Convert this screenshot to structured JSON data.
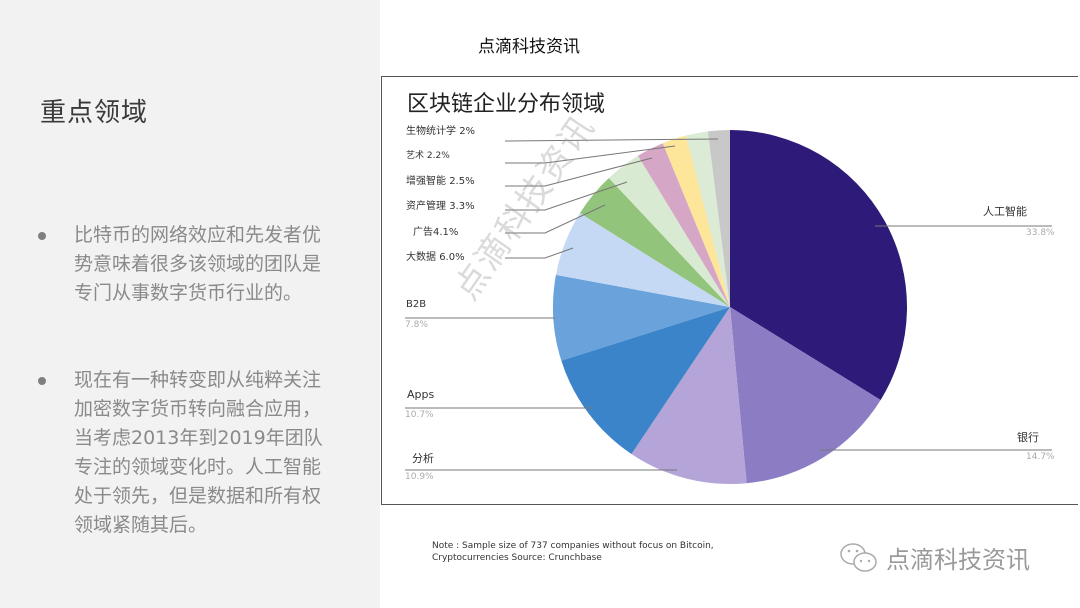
{
  "slide": {
    "title": "重点领域",
    "bullets": [
      "比特币的网络效应和先发者优势意味着很多该领域的团队是专门从事数字货币行业的。",
      "现在有一种转变即从纯粹关注加密数字货币转向融合应用，当考虑2013年到2019年团队专注的领域变化时。人工智能处于领先，但是数据和所有权领域紧随其后。"
    ]
  },
  "brand": {
    "top": "点滴科技资讯",
    "bottom": "点滴科技资讯",
    "watermark": "点滴科技资讯",
    "icon": "wechat-icon"
  },
  "note": {
    "line1": "Note : Sample size of 737 companies without focus on Bitcoin,",
    "line2": "Cryptocurrencies Source:  Crunchbase"
  },
  "chart_data": {
    "type": "pie",
    "title": "区块链企业分布领域",
    "categories": [
      "人工智能",
      "银行",
      "分析",
      "Apps",
      "B2B",
      "大数据",
      "广告",
      "资产管理",
      "增强智能",
      "艺术",
      "生物统计学"
    ],
    "values": [
      33.8,
      14.7,
      10.9,
      10.7,
      7.8,
      6.0,
      4.1,
      3.3,
      2.5,
      2.2,
      2.0
    ],
    "colors": [
      "#2e1a78",
      "#8c7cc4",
      "#b5a4d8",
      "#3c84c9",
      "#6aa3dc",
      "#c5d9f4",
      "#92c47c",
      "#d9ead2",
      "#d5a6c6",
      "#fde59a",
      "#dcebd5",
      "#c8c8c8"
    ],
    "labels": [
      {
        "name": "人工智能",
        "pct": "33.8%"
      },
      {
        "name": "银行",
        "pct": "14.7%"
      },
      {
        "name": "分析",
        "pct": "10.9%"
      },
      {
        "name": "Apps",
        "pct": "10.7%"
      },
      {
        "name": "B2B",
        "pct": "7.8%"
      },
      {
        "name": "大数据",
        "pct": "6.0%"
      },
      {
        "name": "广告",
        "pct": "4.1%"
      },
      {
        "name": "资产管理",
        "pct": "3.3%"
      },
      {
        "name": "增强智能",
        "pct": "2.5%"
      },
      {
        "name": "艺术",
        "pct": "2.2%"
      },
      {
        "name": "生物统计学",
        "pct": "2%"
      }
    ],
    "legend_position": "callouts"
  }
}
